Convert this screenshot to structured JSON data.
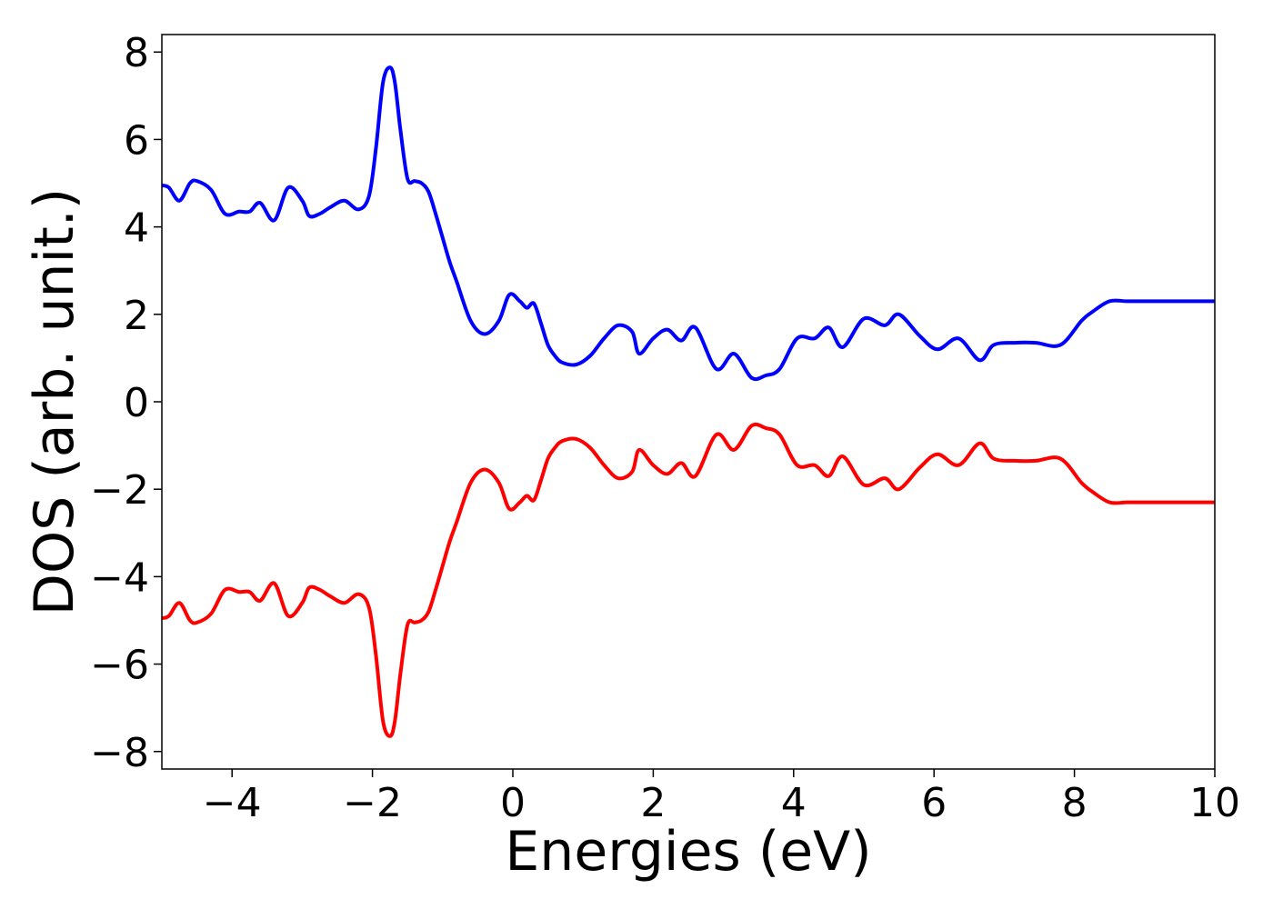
{
  "chart_data": {
    "type": "line",
    "xlabel": "Energies (eV)",
    "ylabel": "DOS (arb. unit.)",
    "xlim": [
      -5,
      10
    ],
    "ylim": [
      -8.4,
      8.4
    ],
    "grid": false,
    "legend": "none",
    "x_ticks": [
      -4,
      -2,
      0,
      2,
      4,
      6,
      8,
      10
    ],
    "x_tick_labels": [
      "−4",
      "−2",
      "0",
      "2",
      "4",
      "6",
      "8",
      "10"
    ],
    "y_ticks": [
      -8,
      -6,
      -4,
      -2,
      0,
      2,
      4,
      6,
      8
    ],
    "y_tick_labels": [
      "−8",
      "−6",
      "−4",
      "−2",
      "0",
      "2",
      "4",
      "6",
      "8"
    ],
    "series": [
      {
        "color": "#0000ff",
        "x": [
          -5.0,
          -4.9,
          -4.75,
          -4.6,
          -4.5,
          -4.3,
          -4.1,
          -3.9,
          -3.75,
          -3.6,
          -3.4,
          -3.2,
          -3.0,
          -2.9,
          -2.75,
          -2.6,
          -2.4,
          -2.2,
          -2.05,
          -1.95,
          -1.85,
          -1.75,
          -1.68,
          -1.6,
          -1.5,
          -1.4,
          -1.3,
          -1.2,
          -1.1,
          -1.0,
          -0.9,
          -0.8,
          -0.6,
          -0.4,
          -0.2,
          -0.05,
          0.1,
          0.2,
          0.3,
          0.4,
          0.5,
          0.6,
          0.7,
          0.9,
          1.1,
          1.3,
          1.5,
          1.7,
          1.8,
          2.0,
          2.2,
          2.4,
          2.6,
          2.9,
          3.15,
          3.4,
          3.6,
          3.8,
          4.05,
          4.3,
          4.5,
          4.7,
          5.0,
          5.3,
          5.5,
          5.8,
          6.05,
          6.35,
          6.65,
          6.85,
          7.15,
          7.45,
          7.8,
          8.1,
          8.25,
          8.5,
          8.75,
          9.0,
          9.25,
          9.4,
          9.6,
          9.85,
          10.0
        ],
        "y": [
          4.95,
          4.9,
          4.6,
          5.0,
          5.05,
          4.85,
          4.3,
          4.35,
          4.35,
          4.55,
          4.15,
          4.9,
          4.6,
          4.25,
          4.3,
          4.45,
          4.6,
          4.4,
          4.7,
          5.8,
          7.3,
          7.65,
          7.3,
          6.2,
          5.1,
          5.05,
          5.0,
          4.8,
          4.3,
          3.75,
          3.2,
          2.75,
          1.85,
          1.55,
          1.85,
          2.45,
          2.3,
          2.15,
          2.25,
          1.8,
          1.3,
          1.05,
          0.9,
          0.85,
          1.05,
          1.45,
          1.75,
          1.6,
          1.1,
          1.45,
          1.65,
          1.4,
          1.7,
          0.75,
          1.1,
          0.55,
          0.6,
          0.75,
          1.45,
          1.45,
          1.7,
          1.25,
          1.9,
          1.75,
          2.0,
          1.5,
          1.2,
          1.45,
          0.95,
          1.3,
          1.35,
          1.35,
          1.3,
          1.85,
          2.05,
          2.3,
          2.3,
          2.3,
          2.3,
          2.3,
          2.3,
          2.3,
          2.3
        ]
      },
      {
        "color": "#ff0000",
        "x": [
          -5.0,
          -4.9,
          -4.75,
          -4.6,
          -4.5,
          -4.3,
          -4.1,
          -3.9,
          -3.75,
          -3.6,
          -3.4,
          -3.2,
          -3.0,
          -2.9,
          -2.75,
          -2.6,
          -2.4,
          -2.2,
          -2.05,
          -1.95,
          -1.85,
          -1.75,
          -1.68,
          -1.6,
          -1.5,
          -1.4,
          -1.3,
          -1.2,
          -1.1,
          -1.0,
          -0.9,
          -0.8,
          -0.6,
          -0.4,
          -0.2,
          -0.05,
          0.1,
          0.2,
          0.3,
          0.4,
          0.5,
          0.6,
          0.7,
          0.9,
          1.1,
          1.3,
          1.5,
          1.7,
          1.8,
          2.0,
          2.2,
          2.4,
          2.6,
          2.9,
          3.15,
          3.4,
          3.6,
          3.8,
          4.05,
          4.3,
          4.5,
          4.7,
          5.0,
          5.3,
          5.5,
          5.8,
          6.05,
          6.35,
          6.65,
          6.85,
          7.15,
          7.45,
          7.8,
          8.1,
          8.25,
          8.5,
          8.75,
          9.0,
          9.25,
          9.4,
          9.6,
          9.85,
          10.0
        ],
        "y": [
          -4.95,
          -4.9,
          -4.6,
          -5.0,
          -5.05,
          -4.85,
          -4.3,
          -4.35,
          -4.35,
          -4.55,
          -4.15,
          -4.9,
          -4.6,
          -4.25,
          -4.3,
          -4.45,
          -4.6,
          -4.4,
          -4.7,
          -5.8,
          -7.3,
          -7.65,
          -7.3,
          -6.2,
          -5.1,
          -5.05,
          -5.0,
          -4.8,
          -4.3,
          -3.75,
          -3.2,
          -2.75,
          -1.85,
          -1.55,
          -1.85,
          -2.45,
          -2.3,
          -2.15,
          -2.25,
          -1.8,
          -1.3,
          -1.05,
          -0.9,
          -0.85,
          -1.05,
          -1.45,
          -1.75,
          -1.6,
          -1.1,
          -1.45,
          -1.65,
          -1.4,
          -1.7,
          -0.75,
          -1.1,
          -0.55,
          -0.6,
          -0.75,
          -1.45,
          -1.45,
          -1.7,
          -1.25,
          -1.9,
          -1.75,
          -2.0,
          -1.5,
          -1.2,
          -1.45,
          -0.95,
          -1.3,
          -1.35,
          -1.35,
          -1.3,
          -1.85,
          -2.05,
          -2.3,
          -2.3,
          -2.3,
          -2.3,
          -2.3,
          -2.3,
          -2.3,
          -2.3
        ]
      }
    ]
  }
}
